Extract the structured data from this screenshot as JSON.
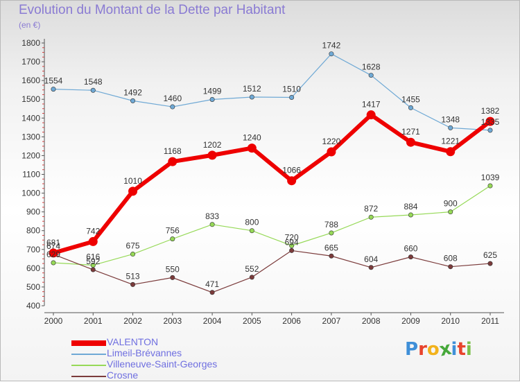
{
  "title": "Evolution du Montant de la Dette par Habitant",
  "subtitle": "(en €)",
  "logo_text": "Proxiti",
  "chart_data": {
    "type": "line",
    "title": "Evolution du Montant de la Dette par Habitant",
    "subtitle": "(en €)",
    "x": [
      "2000",
      "2001",
      "2002",
      "2003",
      "2004",
      "2005",
      "2006",
      "2007",
      "2008",
      "2009",
      "2010",
      "2011"
    ],
    "ylim": [
      400,
      1800
    ],
    "yticks": [
      400,
      500,
      600,
      700,
      800,
      900,
      1000,
      1100,
      1200,
      1300,
      1400,
      1500,
      1600,
      1700,
      1800
    ],
    "grid": false,
    "legend_position": "bottom-left",
    "series": [
      {
        "name": "VALENTON",
        "color": "#ee0000",
        "values": [
          681,
          742,
          1010,
          1168,
          1202,
          1240,
          1066,
          1220,
          1417,
          1271,
          1221,
          1382
        ]
      },
      {
        "name": "Limeil-Brévannes",
        "color": "#6fa9d5",
        "values": [
          1554,
          1548,
          1492,
          1460,
          1499,
          1512,
          1510,
          1742,
          1628,
          1455,
          1348,
          1335
        ]
      },
      {
        "name": "Villeneuve-Saint-Georges",
        "color": "#96d957",
        "values": [
          629,
          616,
          675,
          756,
          833,
          800,
          720,
          788,
          872,
          884,
          900,
          1039
        ]
      },
      {
        "name": "Crosne",
        "color": "#7b3b3b",
        "values": [
          674,
          592,
          513,
          550,
          471,
          552,
          694,
          665,
          604,
          660,
          608,
          625
        ]
      }
    ]
  }
}
